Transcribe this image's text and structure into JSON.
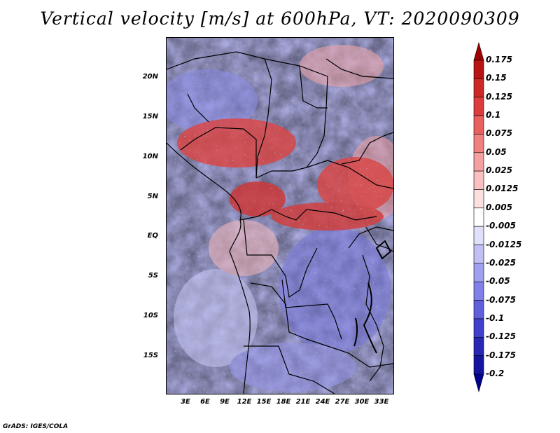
{
  "title": "Vertical velocity [m/s] at 600hPa, VT: 2020090309",
  "credit": "GrADS: IGES/COLA",
  "map": {
    "lat_labels": [
      "20N",
      "15N",
      "10N",
      "5N",
      "EQ",
      "5S",
      "10S",
      "15S"
    ],
    "lon_labels": [
      "3E",
      "6E",
      "9E",
      "12E",
      "15E",
      "18E",
      "21E",
      "24E",
      "27E",
      "30E",
      "33E"
    ]
  },
  "colorbar": {
    "labels": [
      "0.175",
      "0.15",
      "0.125",
      "0.1",
      "0.075",
      "0.05",
      "0.025",
      "0.0125",
      "0.005",
      "-0.005",
      "-0.0125",
      "-0.025",
      "-0.05",
      "-0.075",
      "-0.1",
      "-0.125",
      "-0.175",
      "-0.2"
    ],
    "colors": [
      "#a00000",
      "#b81414",
      "#cc2828",
      "#dc3c3c",
      "#e86060",
      "#f08080",
      "#f5a0a0",
      "#f8c0c0",
      "#fce0e0",
      "#ffffff",
      "#e0e0fa",
      "#c0c0f5",
      "#a0a0f0",
      "#8080e8",
      "#6060dc",
      "#4040cc",
      "#2828b4",
      "#1414a0",
      "#000090"
    ]
  }
}
